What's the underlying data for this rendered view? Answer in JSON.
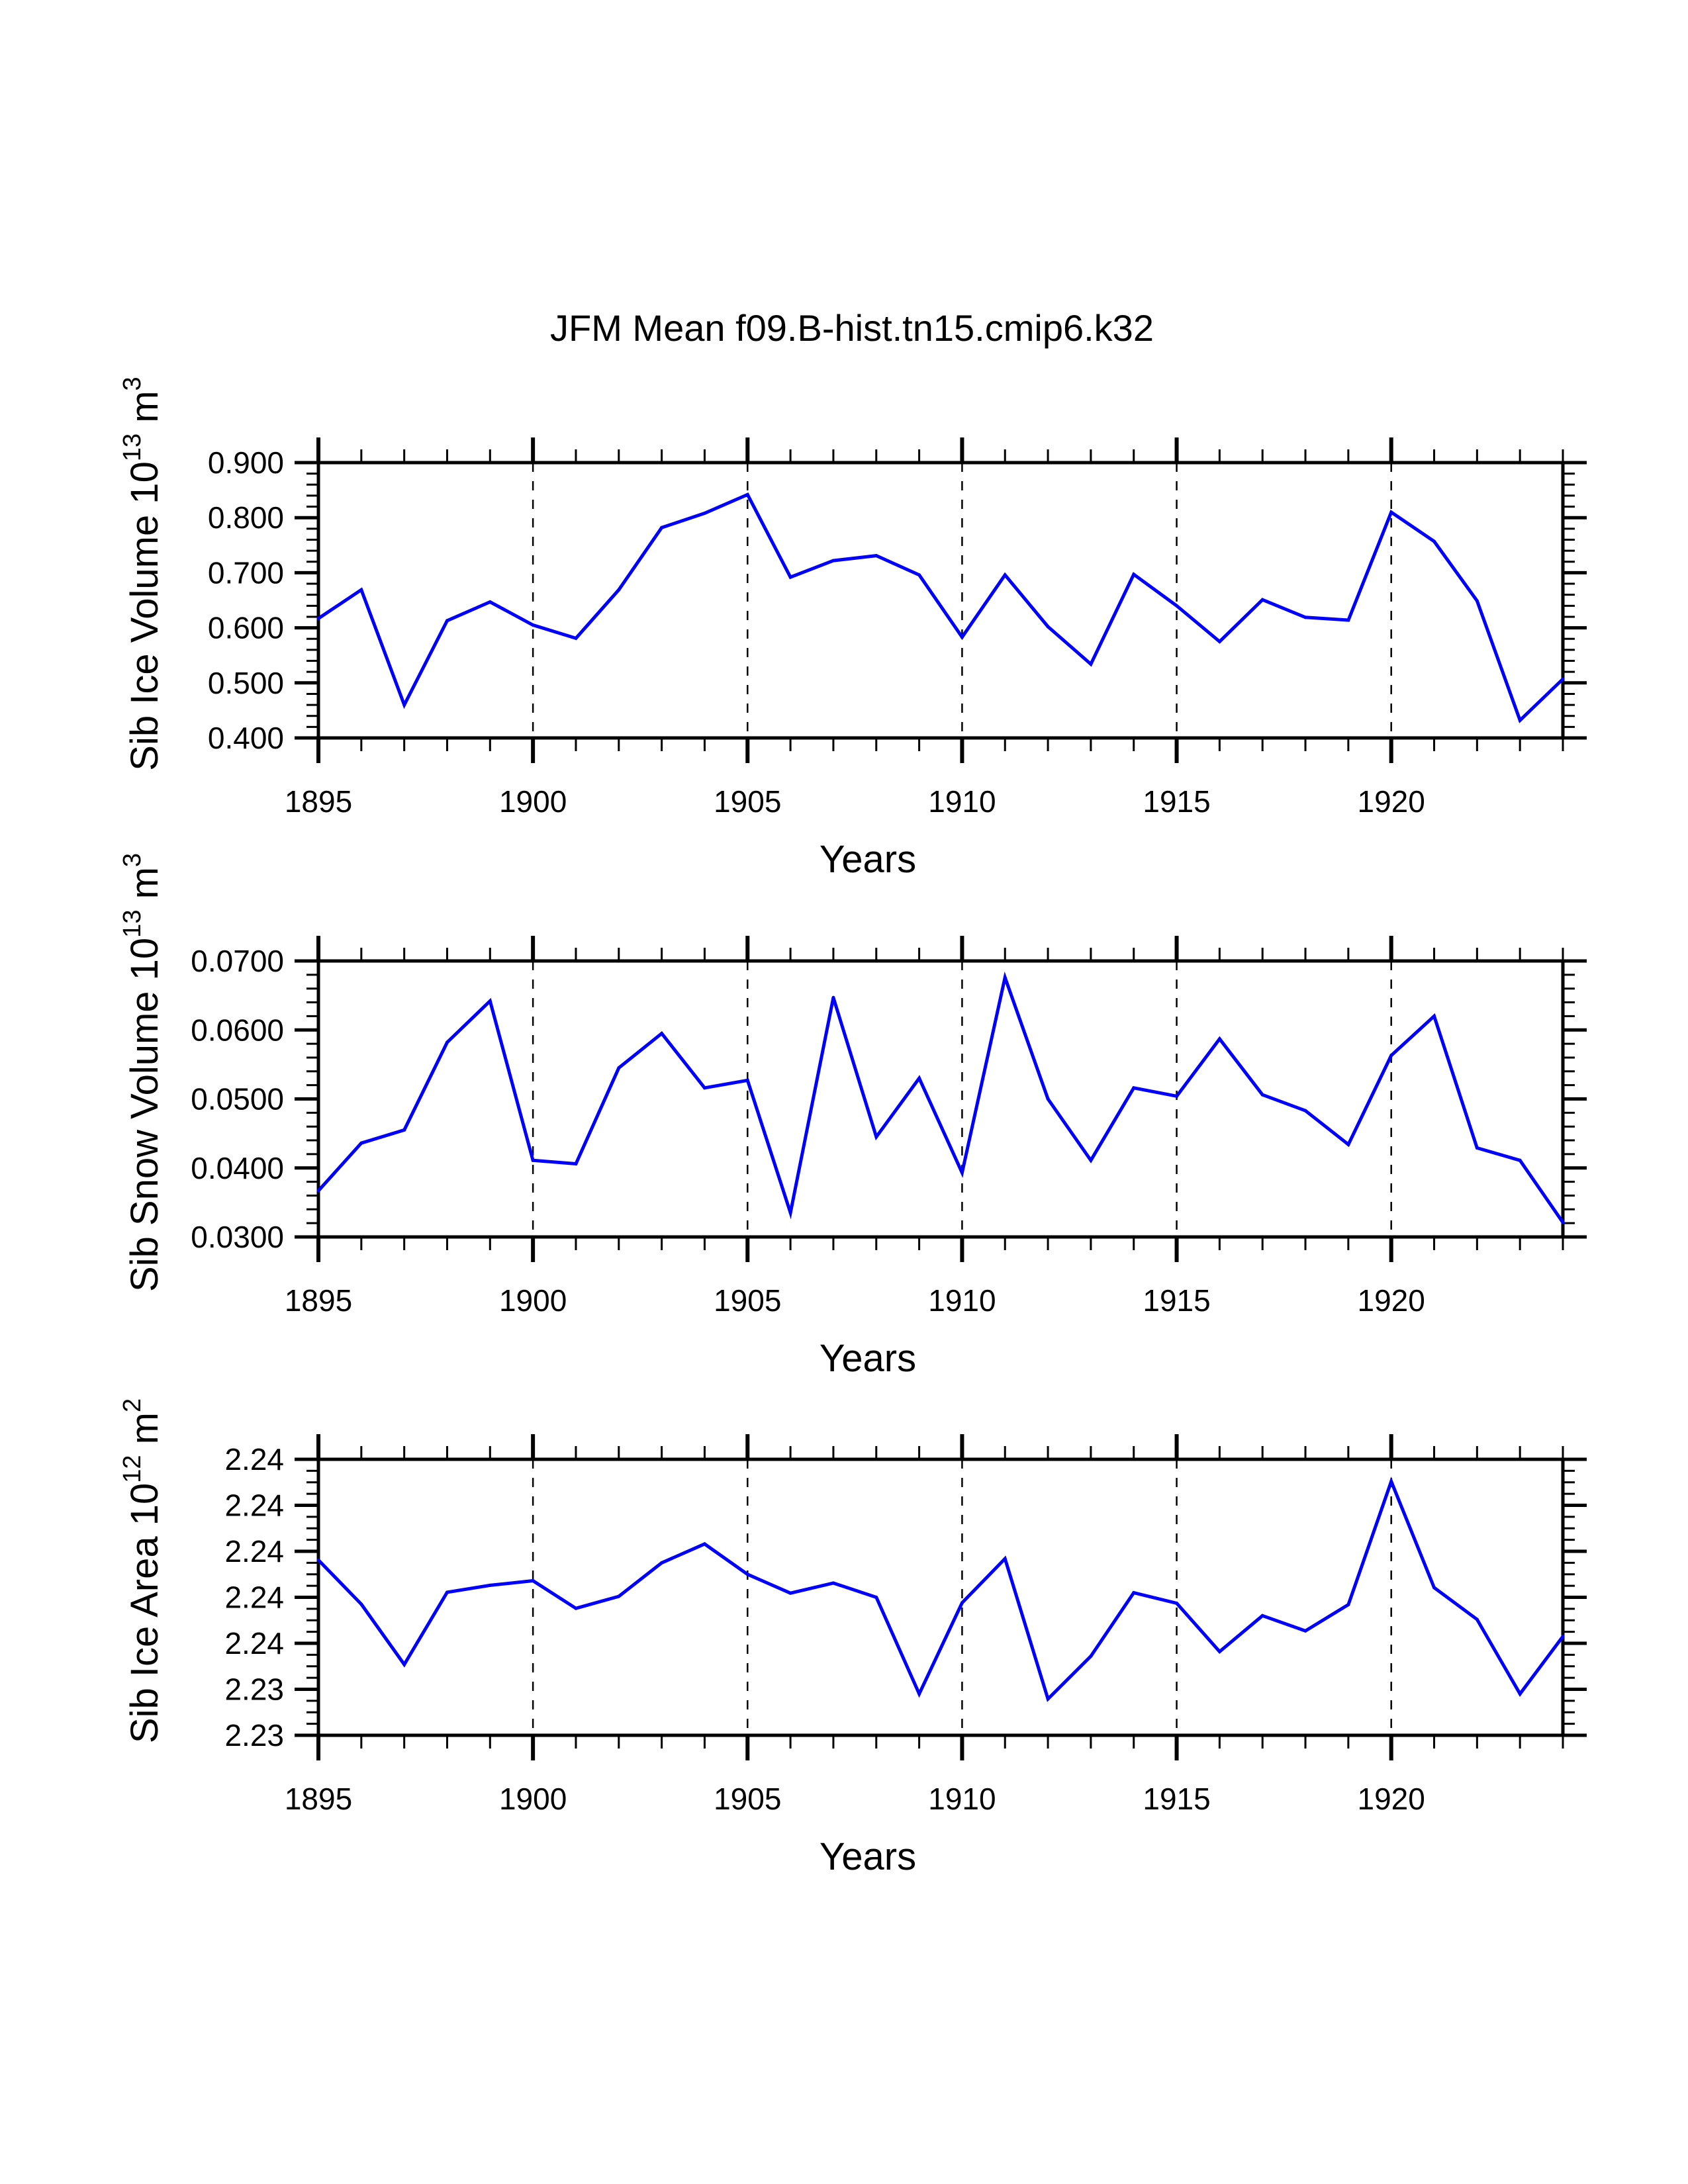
{
  "chart_data": {
    "type": "line",
    "title": "JFM Mean f09.B-hist.tn15.cmip6.k32",
    "line_color": "#0000ff",
    "grid": "dashed vertical lines at labeled years",
    "panels": [
      {
        "name": "ice-volume",
        "ylabel": "Sib Ice Volume 10",
        "ylabel_exp": "13",
        "ylabel_unit": " m",
        "ylabel_unit_exp": "3",
        "xlabel": "Years",
        "xlim": [
          1895,
          1924
        ],
        "ylim": [
          0.4,
          0.9
        ],
        "yticks": [
          0.4,
          0.5,
          0.6,
          0.7,
          0.8,
          0.9
        ],
        "ytick_labels": [
          "0.400",
          "0.500",
          "0.600",
          "0.700",
          "0.800",
          "0.900"
        ],
        "yminor_per_major": 5,
        "xticks": [
          1895,
          1900,
          1905,
          1910,
          1915,
          1920
        ],
        "xtick_labels": [
          "1895",
          "1900",
          "1905",
          "1910",
          "1915",
          "1920"
        ],
        "x": [
          1895,
          1896,
          1897,
          1898,
          1899,
          1900,
          1901,
          1902,
          1903,
          1904,
          1905,
          1906,
          1907,
          1908,
          1909,
          1910,
          1911,
          1912,
          1913,
          1914,
          1915,
          1916,
          1917,
          1918,
          1919,
          1920,
          1921,
          1922,
          1923,
          1924
        ],
        "values": [
          0.617,
          0.669,
          0.46,
          0.613,
          0.647,
          0.605,
          0.581,
          0.669,
          0.782,
          0.808,
          0.842,
          0.692,
          0.722,
          0.731,
          0.696,
          0.583,
          0.696,
          0.602,
          0.534,
          0.697,
          0.64,
          0.575,
          0.651,
          0.619,
          0.614,
          0.81,
          0.757,
          0.649,
          0.432,
          0.507
        ]
      },
      {
        "name": "snow-volume",
        "ylabel": "Sib Snow Volume 10",
        "ylabel_exp": "13",
        "ylabel_unit": " m",
        "ylabel_unit_exp": "3",
        "xlabel": "Years",
        "xlim": [
          1895,
          1924
        ],
        "ylim": [
          0.03,
          0.07
        ],
        "yticks": [
          0.03,
          0.04,
          0.05,
          0.06,
          0.07
        ],
        "ytick_labels": [
          "0.0300",
          "0.0400",
          "0.0500",
          "0.0600",
          "0.0700"
        ],
        "yminor_per_major": 5,
        "xticks": [
          1895,
          1900,
          1905,
          1910,
          1915,
          1920
        ],
        "xtick_labels": [
          "1895",
          "1900",
          "1905",
          "1910",
          "1915",
          "1920"
        ],
        "x": [
          1895,
          1896,
          1897,
          1898,
          1899,
          1900,
          1901,
          1902,
          1903,
          1904,
          1905,
          1906,
          1907,
          1908,
          1909,
          1910,
          1911,
          1912,
          1913,
          1914,
          1915,
          1916,
          1917,
          1918,
          1919,
          1920,
          1921,
          1922,
          1923,
          1924
        ],
        "values": [
          0.0367,
          0.0436,
          0.0455,
          0.0582,
          0.0642,
          0.0411,
          0.0406,
          0.0545,
          0.0595,
          0.0516,
          0.0527,
          0.0335,
          0.0647,
          0.0445,
          0.053,
          0.0393,
          0.0676,
          0.05,
          0.0411,
          0.0516,
          0.0504,
          0.0587,
          0.0506,
          0.0483,
          0.0434,
          0.0563,
          0.062,
          0.0429,
          0.0411,
          0.0321
        ]
      },
      {
        "name": "ice-area",
        "ylabel": "Sib Ice Area 10",
        "ylabel_exp": "12",
        "ylabel_unit": " m",
        "ylabel_unit_exp": "2",
        "xlabel": "Years",
        "xlim": [
          1895,
          1924
        ],
        "ylim": [
          2.233,
          2.239
        ],
        "yticks": [
          2.233,
          2.234,
          2.235,
          2.236,
          2.237,
          2.238,
          2.239
        ],
        "ytick_labels": [
          "2.23",
          "2.23",
          "2.24",
          "2.24",
          "2.24",
          "2.24",
          "2.24"
        ],
        "yminor_per_major": 4,
        "xticks": [
          1895,
          1900,
          1905,
          1910,
          1915,
          1920
        ],
        "xtick_labels": [
          "1895",
          "1900",
          "1905",
          "1910",
          "1915",
          "1920"
        ],
        "x": [
          1895,
          1896,
          1897,
          1898,
          1899,
          1900,
          1901,
          1902,
          1903,
          1904,
          1905,
          1906,
          1907,
          1908,
          1909,
          1910,
          1911,
          1912,
          1913,
          1914,
          1915,
          1916,
          1917,
          1918,
          1919,
          1920,
          1921,
          1922,
          1923,
          1924
        ],
        "values": [
          2.23681,
          2.23585,
          2.23454,
          2.23611,
          2.23626,
          2.23636,
          2.23576,
          2.23602,
          2.23675,
          2.23716,
          2.2365,
          2.23609,
          2.23631,
          2.236,
          2.2339,
          2.23588,
          2.23684,
          2.23379,
          2.23472,
          2.2361,
          2.23587,
          2.23482,
          2.2356,
          2.23527,
          2.23584,
          2.23852,
          2.23621,
          2.23552,
          2.2339,
          2.23515
        ]
      }
    ]
  }
}
